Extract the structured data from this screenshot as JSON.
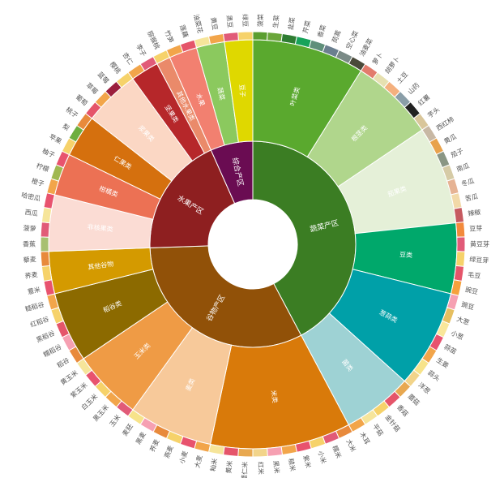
{
  "chart_data": {
    "type": "sunburst",
    "title": "",
    "tree": [
      {
        "name": "蔬菜产区",
        "color": "#3b7d23",
        "children": [
          {
            "name": "叶菜类",
            "color": "#5aa92e",
            "children": [
              {
                "name": "菠菜",
                "value": 1,
                "color": "#5a9e2f"
              },
              {
                "name": "生菜",
                "value": 1,
                "color": "#6aa63a"
              },
              {
                "name": "韭菜",
                "value": 1,
                "color": "#2e7d32"
              },
              {
                "name": "芹菜",
                "value": 1,
                "color": "#17a35a"
              },
              {
                "name": "香菜",
                "value": 1,
                "color": "#5f8f7a"
              },
              {
                "name": "茼蒿",
                "value": 1,
                "color": "#6b7f8f"
              },
              {
                "name": "空心菜",
                "value": 1,
                "color": "#7a8a86"
              },
              {
                "name": "油麦菜",
                "value": 1,
                "color": "#4a4a3a"
              }
            ]
          },
          {
            "name": "根茎类",
            "color": "#b0d68c",
            "children": [
              {
                "name": "萝卜",
                "value": 1,
                "color": "#e27b6c"
              },
              {
                "name": "胡萝卜",
                "value": 1,
                "color": "#e6e0b0"
              },
              {
                "name": "土豆",
                "value": 1,
                "color": "#f4b07e"
              },
              {
                "name": "山药",
                "value": 1,
                "color": "#8a9ea8"
              },
              {
                "name": "红薯",
                "value": 1,
                "color": "#222222"
              },
              {
                "name": "芋头",
                "value": 1,
                "color": "#d9c69a"
              }
            ]
          },
          {
            "name": "茄果类",
            "color": "#e5f0d8",
            "children": [
              {
                "name": "西红柿",
                "value": 1,
                "color": "#c8b8a4"
              },
              {
                "name": "黄瓜",
                "value": 1,
                "color": "#e8a24c"
              },
              {
                "name": "茄子",
                "value": 1,
                "color": "#8a9684"
              },
              {
                "name": "南瓜",
                "value": 1,
                "color": "#d6cba6"
              },
              {
                "name": "冬瓜",
                "value": 1,
                "color": "#e6b394"
              },
              {
                "name": "苦瓜",
                "value": 1,
                "color": "#f2d9a8"
              },
              {
                "name": "辣椒",
                "value": 1,
                "color": "#c65a60"
              }
            ]
          },
          {
            "name": "豆类",
            "color": "#00a86b",
            "children": [
              {
                "name": "豆芽",
                "value": 1,
                "color": "#f28a3c"
              },
              {
                "name": "黄豆芽",
                "value": 1,
                "color": "#e15b78"
              },
              {
                "name": "绿豆芽",
                "value": 1,
                "color": "#f6d26a"
              },
              {
                "name": "毛豆",
                "value": 1,
                "color": "#e5556a"
              },
              {
                "name": "豌豆",
                "value": 1,
                "color": "#f6a13c"
              }
            ]
          },
          {
            "name": "葱蒜类",
            "color": "#00a0a8",
            "children": [
              {
                "name": "豌豆",
                "value": 1,
                "color": "#f6a0b2"
              },
              {
                "name": "大葱",
                "value": 1,
                "color": "#e6bf60"
              },
              {
                "name": "小葱",
                "value": 1,
                "color": "#f9e79a"
              },
              {
                "name": "蒜苗",
                "value": 1,
                "color": "#e8536e"
              },
              {
                "name": "生姜",
                "value": 1,
                "color": "#f2a54a"
              },
              {
                "name": "蒜头",
                "value": 1,
                "color": "#f7e38a"
              },
              {
                "name": "洋葱",
                "value": 1,
                "color": "#f2d48a"
              }
            ]
          },
          {
            "name": "菌类",
            "color": "#9ed2d4",
            "children": [
              {
                "name": "蘑菇",
                "value": 1,
                "color": "#e8a850"
              },
              {
                "name": "香菇",
                "value": 1,
                "color": "#e5556a"
              },
              {
                "name": "金针菇",
                "value": 1,
                "color": "#f6d26a"
              },
              {
                "name": "平菇",
                "value": 1,
                "color": "#f6e59a"
              },
              {
                "name": "木耳",
                "value": 1,
                "color": "#f2a54a"
              }
            ]
          }
        ]
      },
      {
        "name": "谷物产区",
        "color": "#915108",
        "children": [
          {
            "name": "米类",
            "color": "#d97a0a",
            "children": [
              {
                "name": "大米",
                "value": 1,
                "color": "#e88a3c"
              },
              {
                "name": "糯米",
                "value": 1,
                "color": "#e15b78"
              },
              {
                "name": "小米",
                "value": 1,
                "color": "#f6d26a"
              },
              {
                "name": "紫米",
                "value": 1,
                "color": "#e8536e"
              },
              {
                "name": "糙米",
                "value": 1,
                "color": "#f2a54a"
              },
              {
                "name": "黑米",
                "value": 1,
                "color": "#f6a0b2"
              },
              {
                "name": "红米",
                "value": 1,
                "color": "#f2d48a"
              },
              {
                "name": "薏仁米",
                "value": 1,
                "color": "#e8a850"
              },
              {
                "name": "黄米",
                "value": 1,
                "color": "#e5556a"
              },
              {
                "name": "籼米",
                "value": 1,
                "color": "#f6e59a"
              }
            ]
          },
          {
            "name": "麦类",
            "color": "#f7c99a",
            "children": [
              {
                "name": "大麦",
                "value": 1,
                "color": "#f2a54a"
              },
              {
                "name": "小麦",
                "value": 1,
                "color": "#e8536e"
              },
              {
                "name": "燕麦",
                "value": 1,
                "color": "#f6d26a"
              },
              {
                "name": "荞麦",
                "value": 1,
                "color": "#e88a3c"
              },
              {
                "name": "黑麦",
                "value": 1,
                "color": "#f6a0b2"
              },
              {
                "name": "麦胚",
                "value": 1,
                "color": "#f7e38a"
              }
            ]
          },
          {
            "name": "玉米类",
            "color": "#ef9b45",
            "children": [
              {
                "name": "玉米",
                "value": 1,
                "color": "#e15b78"
              },
              {
                "name": "黑玉米",
                "value": 1,
                "color": "#f2a54a"
              },
              {
                "name": "白玉米",
                "value": 1,
                "color": "#f6d26a"
              },
              {
                "name": "紫玉米",
                "value": 1,
                "color": "#e8536e"
              },
              {
                "name": "黄玉米",
                "value": 1,
                "color": "#f6e59a"
              }
            ]
          },
          {
            "name": "稻谷类",
            "color": "#8c6a00",
            "children": [
              {
                "name": "稻谷",
                "value": 1,
                "color": "#e88a3c"
              },
              {
                "name": "糯稻谷",
                "value": 1,
                "color": "#f6a0b2"
              },
              {
                "name": "黑稻谷",
                "value": 1,
                "color": "#e5556a"
              },
              {
                "name": "红稻谷",
                "value": 1,
                "color": "#f6d26a"
              },
              {
                "name": "糙稻谷",
                "value": 1,
                "color": "#f2a54a"
              }
            ]
          },
          {
            "name": "其他谷物",
            "color": "#d49a00",
            "children": [
              {
                "name": "薏米",
                "value": 1,
                "color": "#e8536e"
              },
              {
                "name": "荞麦",
                "value": 1,
                "color": "#f6d26a"
              },
              {
                "name": "藜麦",
                "value": 1,
                "color": "#e88a3c"
              }
            ]
          }
        ]
      },
      {
        "name": "水果产区",
        "color": "#8e1f20",
        "children": [
          {
            "name": "非核果类",
            "color": "#fbdcd4",
            "children": [
              {
                "name": "香蕉",
                "value": 1,
                "color": "#a8c070"
              },
              {
                "name": "菠萝",
                "value": 1,
                "color": "#e15b78"
              },
              {
                "name": "西瓜",
                "value": 1,
                "color": "#f6e59a"
              },
              {
                "name": "哈密瓜",
                "value": 1,
                "color": "#e8536e"
              }
            ]
          },
          {
            "name": "柑橘类",
            "color": "#ec7154",
            "children": [
              {
                "name": "橙子",
                "value": 1,
                "color": "#f2a54a"
              },
              {
                "name": "柠檬",
                "value": 1,
                "color": "#a0b850"
              },
              {
                "name": "柚子",
                "value": 1,
                "color": "#e8536e"
              }
            ]
          },
          {
            "name": "仁果类",
            "color": "#d5700e",
            "children": [
              {
                "name": "苹果",
                "value": 1,
                "color": "#f6d26a"
              },
              {
                "name": "梨",
                "value": 1,
                "color": "#6dae3e"
              },
              {
                "name": "桃子",
                "value": 1,
                "color": "#e88a3c"
              }
            ]
          },
          {
            "name": "浆果类",
            "color": "#fbd7c4",
            "children": [
              {
                "name": "葡萄",
                "value": 1,
                "color": "#e5556a"
              },
              {
                "name": "草莓",
                "value": 1,
                "color": "#f2a54a"
              },
              {
                "name": "蓝莓",
                "value": 1,
                "color": "#9b1f3d"
              },
              {
                "name": "樱桃",
                "value": 1,
                "color": "#f6d26a"
              }
            ]
          },
          {
            "name": "坚果类",
            "color": "#b6272a",
            "children": [
              {
                "name": "杏仁",
                "value": 1,
                "color": "#f2a54a"
              },
              {
                "name": "李子",
                "value": 1,
                "color": "#e15b78"
              }
            ]
          },
          {
            "name": "其他水果类",
            "color": "#ea8a6a",
            "children": [
              {
                "name": "猕猴桃",
                "value": 1,
                "color": "#f6d26a"
              }
            ]
          }
        ]
      },
      {
        "name": "综合产区",
        "color": "#6a0c52",
        "children": [
          {
            "name": "水果",
            "color": "#f28070",
            "children": [
              {
                "name": "竹笋",
                "value": 1,
                "color": "#f2a54a"
              },
              {
                "name": "莲藕",
                "value": 1,
                "color": "#e5556a"
              }
            ]
          },
          {
            "name": "蔬菜",
            "color": "#8bc95e",
            "children": [
              {
                "name": "油菜花",
                "value": 1,
                "color": "#f6e59a"
              },
              {
                "name": "黄豆",
                "value": 1,
                "color": "#f2a54a"
              }
            ]
          },
          {
            "name": "豆子",
            "color": "#dfd800",
            "children": [
              {
                "name": "黑豆",
                "value": 1,
                "color": "#e15b78"
              },
              {
                "name": "绿豆",
                "value": 1,
                "color": "#f6d26a"
              }
            ]
          }
        ]
      }
    ]
  }
}
